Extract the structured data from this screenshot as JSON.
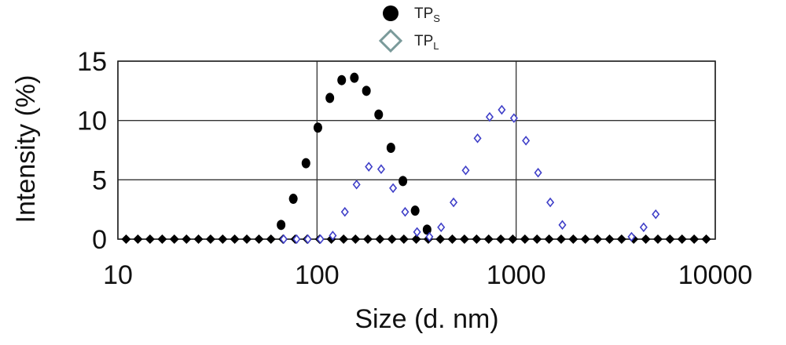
{
  "chart_data": {
    "type": "scatter",
    "xlabel": "Size (d. nm)",
    "ylabel": "Intensity (%)",
    "xscale": "log",
    "xlim": [
      10,
      10000
    ],
    "ylim": [
      0,
      15
    ],
    "x_ticks": [
      "10",
      "100",
      "1000",
      "10000"
    ],
    "y_ticks": [
      "0",
      "5",
      "10",
      "15"
    ],
    "grid": "major",
    "legend_position": "top-center",
    "series": [
      {
        "name": "TP",
        "subscript": "S",
        "marker": "filled-circle",
        "color": "#000000",
        "points": [
          [
            66,
            1.2
          ],
          [
            76,
            3.4
          ],
          [
            88,
            6.4
          ],
          [
            101,
            9.4
          ],
          [
            116,
            11.9
          ],
          [
            133,
            13.4
          ],
          [
            154,
            13.6
          ],
          [
            177,
            12.5
          ],
          [
            204,
            10.5
          ],
          [
            235,
            7.7
          ],
          [
            270,
            4.9
          ],
          [
            311,
            2.4
          ],
          [
            357,
            0.8
          ]
        ]
      },
      {
        "name": "TP",
        "subscript": "L",
        "marker": "open-diamond",
        "color": "#3f3fc8",
        "points": [
          [
            68,
            0.0
          ],
          [
            79,
            0.0
          ],
          [
            90,
            0.0
          ],
          [
            104,
            0.0
          ],
          [
            120,
            0.3
          ],
          [
            138,
            2.3
          ],
          [
            158,
            4.6
          ],
          [
            182,
            6.1
          ],
          [
            210,
            5.9
          ],
          [
            241,
            4.3
          ],
          [
            277,
            2.3
          ],
          [
            318,
            0.6
          ],
          [
            367,
            0.2
          ],
          [
            420,
            1.0
          ],
          [
            485,
            3.1
          ],
          [
            558,
            5.8
          ],
          [
            640,
            8.5
          ],
          [
            736,
            10.3
          ],
          [
            847,
            10.9
          ],
          [
            975,
            10.2
          ],
          [
            1120,
            8.3
          ],
          [
            1289,
            5.6
          ],
          [
            1484,
            3.1
          ],
          [
            1707,
            1.2
          ],
          [
            3797,
            0.2
          ],
          [
            4368,
            1.0
          ],
          [
            5024,
            2.1
          ]
        ]
      }
    ],
    "baseline_series": {
      "marker": "filled-diamond",
      "color": "#000000",
      "y": 0,
      "x": [
        11,
        12.6,
        14.5,
        16.7,
        19.2,
        22.1,
        25.4,
        29.2,
        33.6,
        38.6,
        44.4,
        51.1,
        58.7,
        67.5,
        77.7,
        89.3,
        103,
        118,
        136,
        156,
        180,
        207,
        238,
        273,
        315,
        362,
        416,
        478,
        550,
        633,
        728,
        837,
        962,
        1107,
        1273,
        1464,
        1683,
        1936,
        2226,
        2560,
        2945,
        3386,
        3894,
        4479,
        5151,
        5923,
        6812,
        7834,
        9009
      ]
    }
  }
}
